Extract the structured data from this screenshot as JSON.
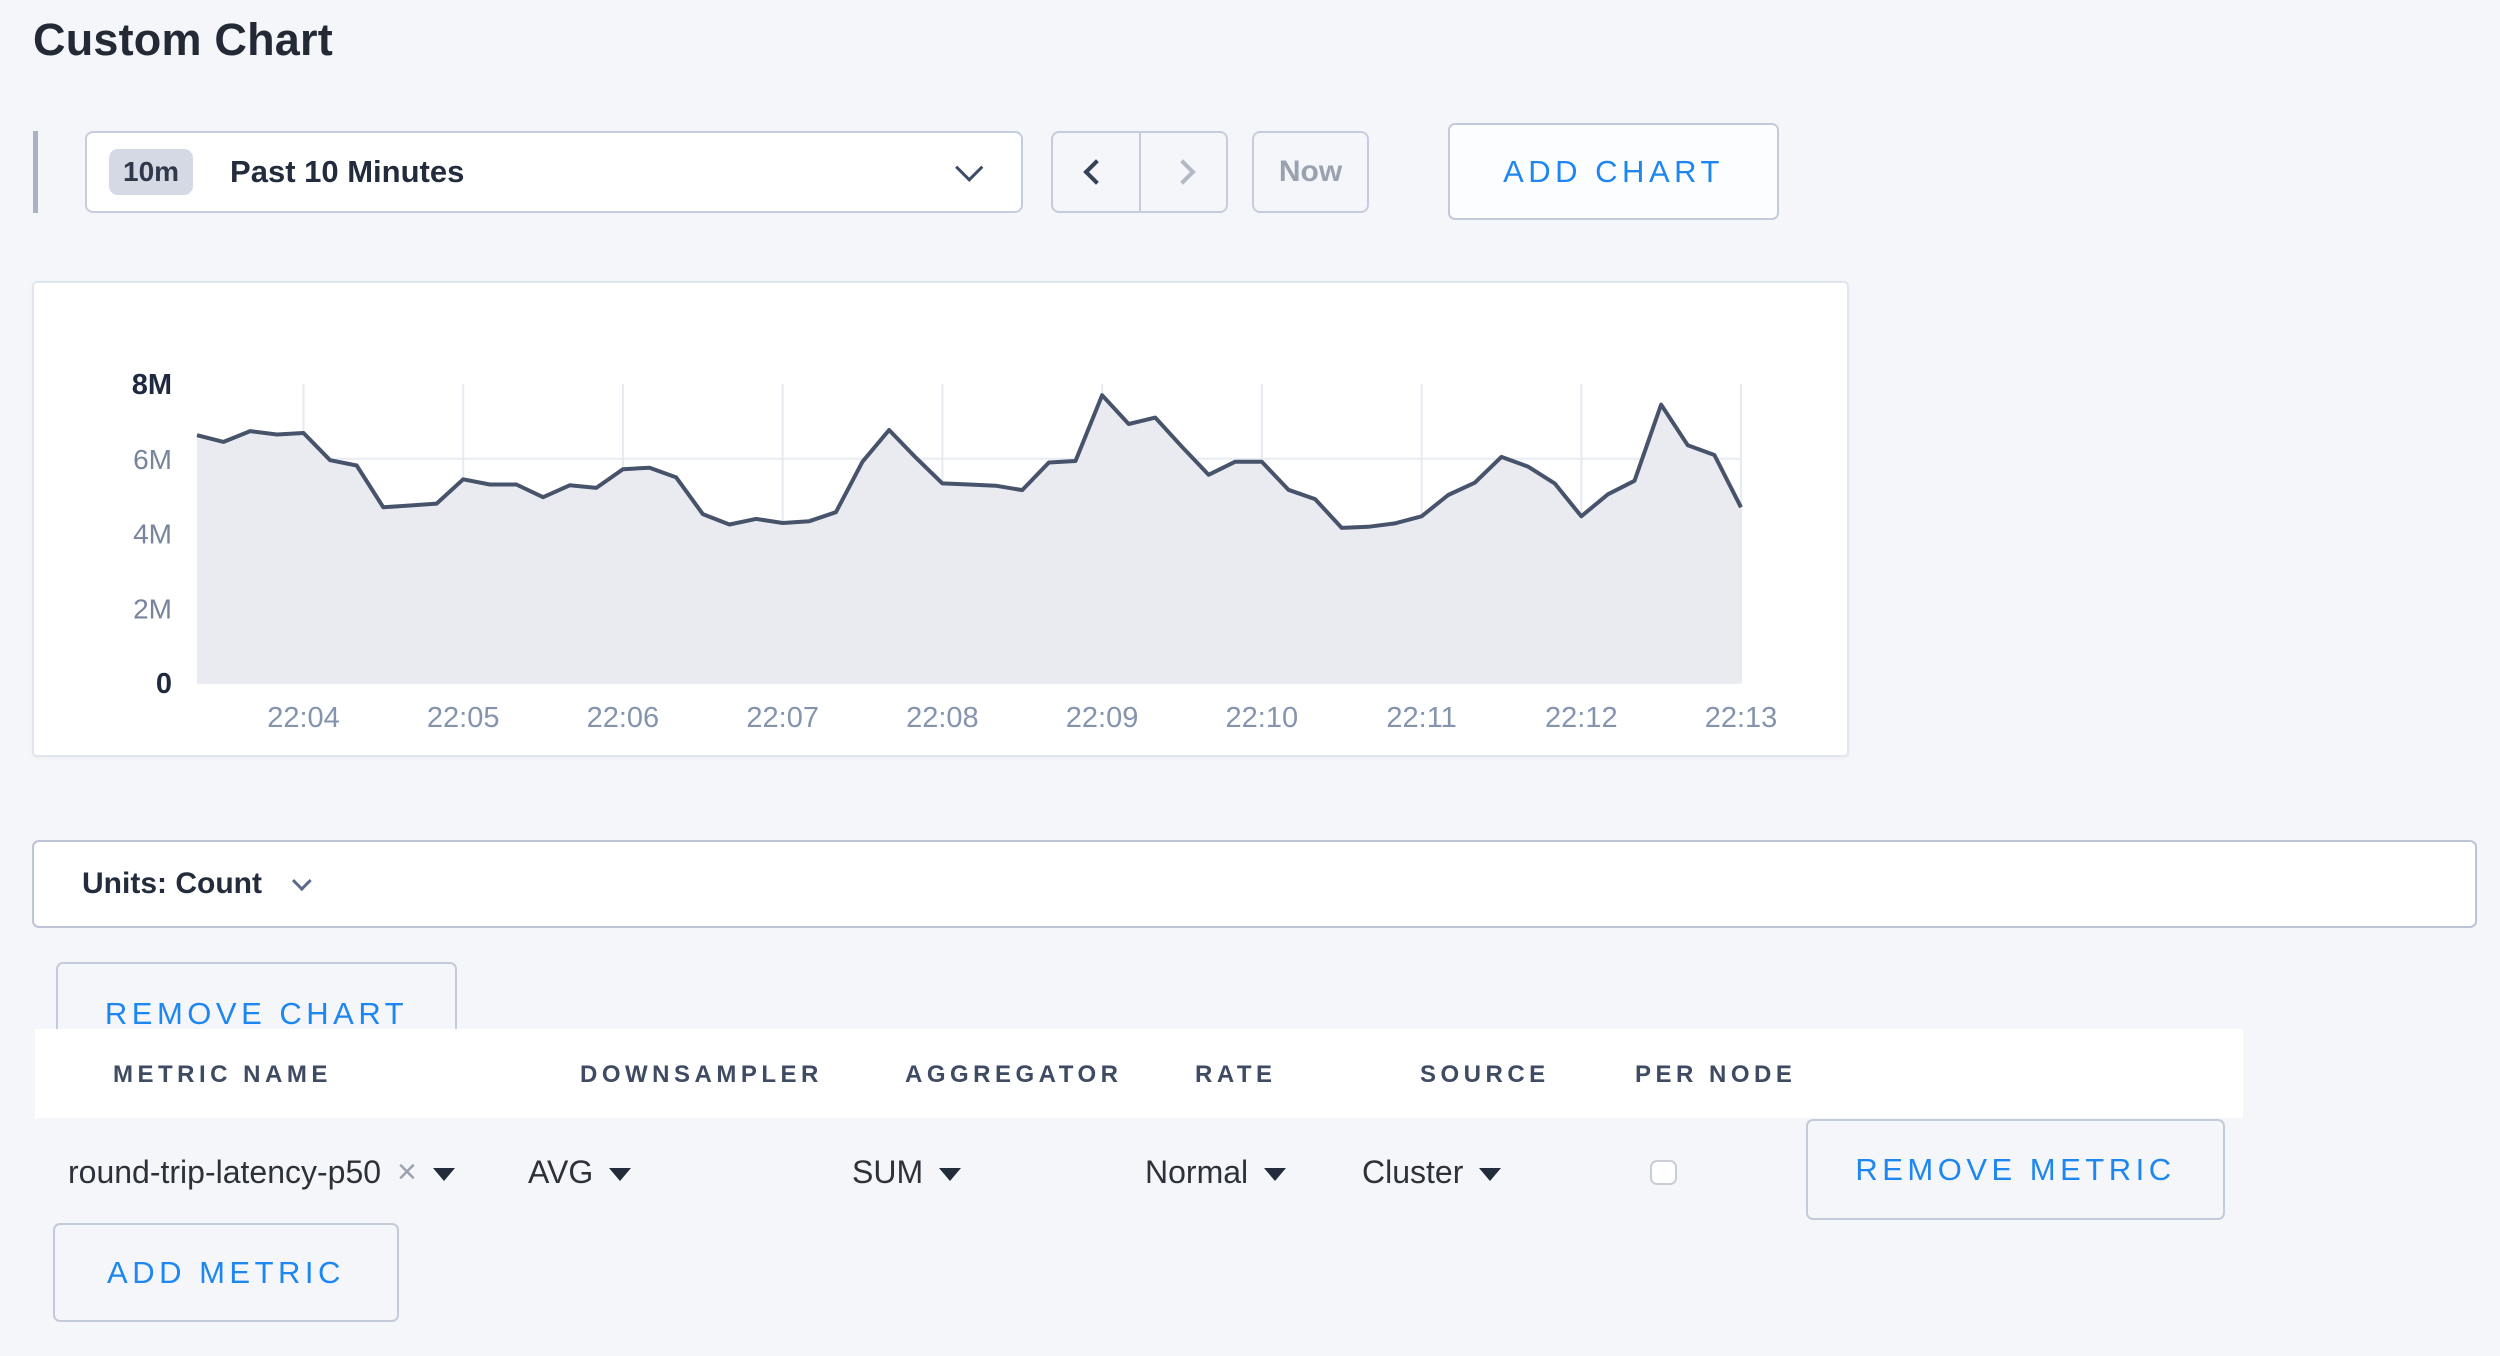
{
  "page": {
    "title": "Custom Chart",
    "background": "#f4f6fa",
    "accent_blue": "#1e86f0"
  },
  "toolbar": {
    "range_badge": "10m",
    "range_label": "Past 10 Minutes",
    "prev_icon": "chevron-left",
    "next_icon": "chevron-right",
    "now_label": "Now",
    "add_chart_label": "ADD CHART"
  },
  "chart_data": {
    "type": "area",
    "title": "",
    "xlabel": "",
    "ylabel": "",
    "legend": false,
    "grid": true,
    "x_ticks": [
      "22:04",
      "22:05",
      "22:06",
      "22:07",
      "22:08",
      "22:09",
      "22:10",
      "22:11",
      "22:12",
      "22:13"
    ],
    "first_tick_index": 4,
    "tick_step": 6,
    "sample_interval_seconds": 10,
    "ylim_millions": [
      0,
      8
    ],
    "y_tick_labels": [
      "0",
      "2M",
      "4M",
      "6M",
      "8M"
    ],
    "y_gridlines_millions": [
      2,
      4,
      6
    ],
    "values_millions": [
      6.63,
      6.45,
      6.74,
      6.65,
      6.69,
      5.96,
      5.82,
      4.7,
      4.75,
      4.8,
      5.45,
      5.31,
      5.31,
      4.97,
      5.29,
      5.22,
      5.72,
      5.76,
      5.5,
      4.52,
      4.24,
      4.39,
      4.28,
      4.33,
      4.57,
      5.92,
      6.77,
      6.03,
      5.34,
      5.31,
      5.28,
      5.16,
      5.9,
      5.94,
      7.7,
      6.93,
      7.1,
      6.32,
      5.57,
      5.92,
      5.92,
      5.17,
      4.92,
      4.15,
      4.18,
      4.27,
      4.46,
      5.03,
      5.36,
      6.05,
      5.79,
      5.34,
      4.46,
      5.05,
      5.41,
      7.45,
      6.36,
      6.1,
      4.7
    ],
    "line_color": "#47536a",
    "fill_color": "#e9ebf1"
  },
  "units_bar": {
    "label": "Units: Count"
  },
  "chart_actions": {
    "remove_chart_label": "REMOVE CHART",
    "add_metric_label": "ADD METRIC"
  },
  "metrics_table": {
    "columns": [
      "METRIC NAME",
      "DOWNSAMPLER",
      "AGGREGATOR",
      "RATE",
      "SOURCE",
      "PER NODE"
    ],
    "rows": [
      {
        "metric_name": "round-trip-latency-p50",
        "clear_icon": "×",
        "downsampler": "AVG",
        "aggregator": "SUM",
        "rate": "Normal",
        "source": "Cluster",
        "per_node_checked": false,
        "remove_label": "REMOVE METRIC"
      }
    ]
  }
}
